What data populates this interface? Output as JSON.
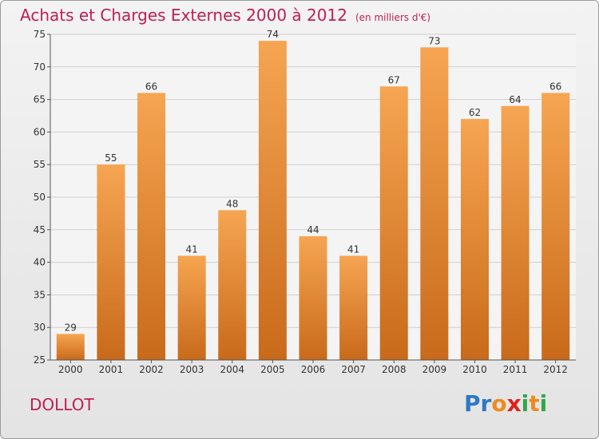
{
  "title": "Achats et Charges Externes 2000 à 2012",
  "subtitle": "(en milliers d'€)",
  "commune": "DOLLOT",
  "logo": {
    "letters": [
      "P",
      "r",
      "o",
      "x",
      "i",
      "t",
      "i"
    ],
    "colors": [
      "#2f78c4",
      "#2f78c4",
      "#f08a1c",
      "#e02020",
      "#2fa64a",
      "#f08a1c",
      "#2fa64a"
    ]
  },
  "colors": {
    "bar_light": "#f6a552",
    "bar_dark": "#c86a1a",
    "title": "#bf1e55"
  },
  "chart_data": {
    "type": "bar",
    "categories": [
      "2000",
      "2001",
      "2002",
      "2003",
      "2004",
      "2005",
      "2006",
      "2007",
      "2008",
      "2009",
      "2010",
      "2011",
      "2012"
    ],
    "values": [
      29,
      55,
      66,
      41,
      48,
      74,
      44,
      41,
      67,
      73,
      62,
      64,
      66
    ],
    "ylim": [
      25,
      75
    ],
    "yticks": [
      25,
      30,
      35,
      40,
      45,
      50,
      55,
      60,
      65,
      70,
      75
    ],
    "grid": true
  }
}
